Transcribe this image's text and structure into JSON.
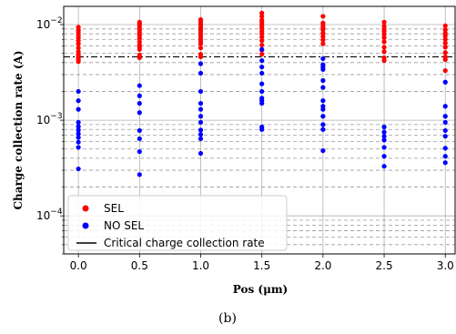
{
  "chart_data": {
    "type": "scatter",
    "title": "",
    "xlabel": "Pos (μm)",
    "ylabel": "Charge collection rate (A)",
    "caption": "(b)",
    "yscale": "log",
    "xlim": [
      -0.12,
      3.08
    ],
    "ylim": [
      4e-05,
      0.0155
    ],
    "xticks": [
      0.0,
      0.5,
      1.0,
      1.5,
      2.0,
      2.5,
      3.0
    ],
    "xticklabels": [
      "0.0",
      "0.5",
      "1.0",
      "1.5",
      "2.0",
      "2.5",
      "3.0"
    ],
    "yticks": [
      0.0001,
      0.001,
      0.01
    ],
    "yticklabels": [
      {
        "base": "10",
        "exp": "−4"
      },
      {
        "base": "10",
        "exp": "−3"
      },
      {
        "base": "10",
        "exp": "−2"
      }
    ],
    "grid": "major and minor",
    "legend_position": "lower-left",
    "threshold": {
      "name": "Critical charge collection rate",
      "value": 0.0046,
      "color": "#000000",
      "style": "dash-dot"
    },
    "series": [
      {
        "name": "SEL",
        "color": "#ff0000",
        "points": [
          [
            0.0,
            0.0094
          ],
          [
            0.0,
            0.0088
          ],
          [
            0.0,
            0.0083
          ],
          [
            0.0,
            0.0078
          ],
          [
            0.0,
            0.0073
          ],
          [
            0.0,
            0.0068
          ],
          [
            0.0,
            0.0063
          ],
          [
            0.0,
            0.0057
          ],
          [
            0.0,
            0.0052
          ],
          [
            0.0,
            0.0049
          ],
          [
            0.0,
            0.0047
          ],
          [
            0.0,
            0.0045
          ],
          [
            0.0,
            0.0043
          ],
          [
            0.0,
            0.0041
          ],
          [
            0.5,
            0.0106
          ],
          [
            0.5,
            0.0102
          ],
          [
            0.5,
            0.0097
          ],
          [
            0.5,
            0.0092
          ],
          [
            0.5,
            0.0087
          ],
          [
            0.5,
            0.0082
          ],
          [
            0.5,
            0.0077
          ],
          [
            0.5,
            0.0072
          ],
          [
            0.5,
            0.0066
          ],
          [
            0.5,
            0.0061
          ],
          [
            0.5,
            0.0058
          ],
          [
            0.5,
            0.0055
          ],
          [
            0.5,
            0.0048
          ],
          [
            0.5,
            0.0045
          ],
          [
            1.0,
            0.0113
          ],
          [
            1.0,
            0.0107
          ],
          [
            1.0,
            0.0101
          ],
          [
            1.0,
            0.0096
          ],
          [
            1.0,
            0.0091
          ],
          [
            1.0,
            0.0086
          ],
          [
            1.0,
            0.0081
          ],
          [
            1.0,
            0.0076
          ],
          [
            1.0,
            0.0071
          ],
          [
            1.0,
            0.0067
          ],
          [
            1.0,
            0.0063
          ],
          [
            1.0,
            0.0057
          ],
          [
            1.0,
            0.0049
          ],
          [
            1.0,
            0.0046
          ],
          [
            1.5,
            0.0132
          ],
          [
            1.5,
            0.0122
          ],
          [
            1.5,
            0.0112
          ],
          [
            1.5,
            0.0106
          ],
          [
            1.5,
            0.0101
          ],
          [
            1.5,
            0.0096
          ],
          [
            1.5,
            0.0091
          ],
          [
            1.5,
            0.0085
          ],
          [
            1.5,
            0.008
          ],
          [
            1.5,
            0.0074
          ],
          [
            1.5,
            0.0068
          ],
          [
            1.5,
            0.0061
          ],
          [
            1.5,
            0.0054
          ],
          [
            1.5,
            0.0049
          ],
          [
            2.0,
            0.0122
          ],
          [
            2.0,
            0.0104
          ],
          [
            2.0,
            0.0098
          ],
          [
            2.0,
            0.0093
          ],
          [
            2.0,
            0.0088
          ],
          [
            2.0,
            0.0081
          ],
          [
            2.0,
            0.0075
          ],
          [
            2.0,
            0.0069
          ],
          [
            2.0,
            0.0063
          ],
          [
            2.5,
            0.0106
          ],
          [
            2.5,
            0.0096
          ],
          [
            2.5,
            0.009
          ],
          [
            2.5,
            0.0085
          ],
          [
            2.5,
            0.0079
          ],
          [
            2.5,
            0.0073
          ],
          [
            2.5,
            0.0066
          ],
          [
            2.5,
            0.0058
          ],
          [
            2.5,
            0.0052
          ],
          [
            2.5,
            0.0045
          ],
          [
            2.5,
            0.0042
          ],
          [
            3.0,
            0.0097
          ],
          [
            3.0,
            0.0088
          ],
          [
            3.0,
            0.0081
          ],
          [
            3.0,
            0.0076
          ],
          [
            3.0,
            0.007
          ],
          [
            3.0,
            0.0064
          ],
          [
            3.0,
            0.0058
          ],
          [
            3.0,
            0.0051
          ],
          [
            3.0,
            0.0046
          ],
          [
            3.0,
            0.0043
          ],
          [
            3.0,
            0.0033
          ]
        ]
      },
      {
        "name": "NO SEL",
        "color": "#0000ff",
        "points": [
          [
            0.0,
            0.002
          ],
          [
            0.0,
            0.0016
          ],
          [
            0.0,
            0.0013
          ],
          [
            0.0,
            0.00095
          ],
          [
            0.0,
            0.00086
          ],
          [
            0.0,
            0.00079
          ],
          [
            0.0,
            0.00072
          ],
          [
            0.0,
            0.00066
          ],
          [
            0.0,
            0.00059
          ],
          [
            0.0,
            0.00052
          ],
          [
            0.0,
            0.00031
          ],
          [
            0.5,
            0.0023
          ],
          [
            0.5,
            0.0018
          ],
          [
            0.5,
            0.0015
          ],
          [
            0.5,
            0.0012
          ],
          [
            0.5,
            0.00078
          ],
          [
            0.5,
            0.00064
          ],
          [
            0.5,
            0.00047
          ],
          [
            0.5,
            0.00027
          ],
          [
            1.0,
            0.0039
          ],
          [
            1.0,
            0.0031
          ],
          [
            1.0,
            0.002
          ],
          [
            1.0,
            0.0015
          ],
          [
            1.0,
            0.0013
          ],
          [
            1.0,
            0.0011
          ],
          [
            1.0,
            0.00095
          ],
          [
            1.0,
            0.00079
          ],
          [
            1.0,
            0.00071
          ],
          [
            1.0,
            0.00064
          ],
          [
            1.0,
            0.00045
          ],
          [
            1.5,
            0.0055
          ],
          [
            1.5,
            0.0042
          ],
          [
            1.5,
            0.0036
          ],
          [
            1.5,
            0.0031
          ],
          [
            1.5,
            0.0024
          ],
          [
            1.5,
            0.002
          ],
          [
            1.5,
            0.0017
          ],
          [
            1.5,
            0.0016
          ],
          [
            1.5,
            0.0015
          ],
          [
            1.5,
            0.00085
          ],
          [
            1.5,
            0.0008
          ],
          [
            2.0,
            0.0044
          ],
          [
            2.0,
            0.0038
          ],
          [
            2.0,
            0.0036
          ],
          [
            2.0,
            0.0034
          ],
          [
            2.0,
            0.0026
          ],
          [
            2.0,
            0.0022
          ],
          [
            2.0,
            0.0016
          ],
          [
            2.0,
            0.0014
          ],
          [
            2.0,
            0.0013
          ],
          [
            2.0,
            0.0011
          ],
          [
            2.0,
            0.0009
          ],
          [
            2.0,
            0.0008
          ],
          [
            2.0,
            0.00048
          ],
          [
            2.5,
            0.00085
          ],
          [
            2.5,
            0.00075
          ],
          [
            2.5,
            0.00068
          ],
          [
            2.5,
            0.00062
          ],
          [
            2.5,
            0.00052
          ],
          [
            2.5,
            0.00042
          ],
          [
            2.5,
            0.00033
          ],
          [
            3.0,
            0.0025
          ],
          [
            3.0,
            0.0014
          ],
          [
            3.0,
            0.0011
          ],
          [
            3.0,
            0.00095
          ],
          [
            3.0,
            0.00078
          ],
          [
            3.0,
            0.00068
          ],
          [
            3.0,
            0.00051
          ],
          [
            3.0,
            0.00042
          ],
          [
            3.0,
            0.00036
          ]
        ]
      }
    ]
  }
}
